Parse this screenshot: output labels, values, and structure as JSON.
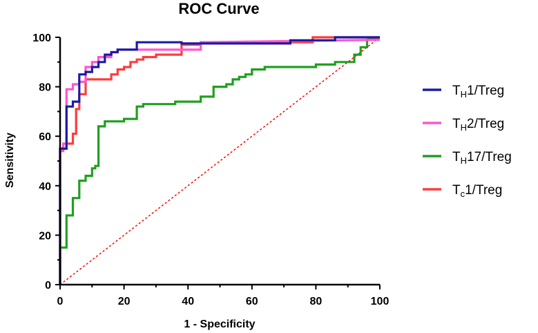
{
  "chart_data": {
    "type": "line",
    "title": "ROC Curve",
    "xlabel": "1 - Specificity",
    "ylabel": "Sensitivity",
    "xlim": [
      0,
      100
    ],
    "ylim": [
      0,
      100
    ],
    "xticks": [
      0,
      20,
      40,
      60,
      80,
      100
    ],
    "yticks": [
      0,
      20,
      40,
      60,
      80,
      100
    ],
    "grid": false,
    "legend_position": "right",
    "reference_line": {
      "x": [
        0,
        100
      ],
      "y": [
        0,
        100
      ],
      "color": "#ff0000",
      "style": "dotted"
    },
    "series": [
      {
        "name": "TH1/Treg",
        "label_main": "T",
        "label_sub": "H",
        "label_rest": "1/Treg",
        "color": "#1a1aa8",
        "x": [
          0,
          0,
          2,
          2,
          4,
          4,
          6,
          6,
          8,
          8,
          10,
          10,
          12,
          12,
          14,
          14,
          16,
          16,
          18,
          18,
          24,
          24,
          38,
          38,
          72,
          72,
          86,
          86,
          100
        ],
        "y": [
          0,
          55,
          55,
          72,
          72,
          74,
          74,
          85,
          85,
          86,
          86,
          88,
          88,
          90,
          90,
          93,
          93,
          94,
          94,
          95,
          95,
          98,
          98,
          97.5,
          97.5,
          98.8,
          98.8,
          100,
          100
        ]
      },
      {
        "name": "TH2/Treg",
        "label_main": "T",
        "label_sub": "H",
        "label_rest": "2/Treg",
        "color": "#ff55cc",
        "x": [
          0,
          0,
          1,
          1,
          2,
          2,
          4,
          4,
          6,
          6,
          8,
          8,
          10,
          10,
          12,
          12,
          16,
          16,
          18,
          18,
          44,
          44,
          100
        ],
        "y": [
          0,
          54,
          54,
          57,
          57,
          79,
          79,
          81,
          81,
          82,
          82,
          88,
          88,
          90,
          90,
          92,
          92,
          94,
          94,
          95,
          95,
          98,
          99
        ]
      },
      {
        "name": "TH17/Treg",
        "label_main": "T",
        "label_sub": "H",
        "label_rest": "17/Treg",
        "color": "#1fa01f",
        "x": [
          0,
          0,
          2,
          2,
          4,
          4,
          6,
          6,
          8,
          8,
          10,
          10,
          11,
          11,
          12,
          12,
          14,
          14,
          20,
          20,
          24,
          24,
          26,
          26,
          36,
          36,
          44,
          44,
          48,
          48,
          52,
          52,
          54,
          54,
          56,
          56,
          58,
          58,
          60,
          60,
          64,
          64,
          80,
          80,
          86,
          86,
          92,
          92,
          94,
          94,
          96,
          96,
          100
        ],
        "y": [
          0,
          15,
          15,
          28,
          28,
          35,
          35,
          42,
          42,
          44,
          44,
          47,
          47,
          48,
          48,
          64,
          64,
          66,
          66,
          67,
          67,
          72,
          72,
          73,
          73,
          74,
          74,
          76,
          76,
          80,
          80,
          81,
          81,
          83,
          83,
          84,
          84,
          85,
          85,
          87,
          87,
          88,
          88,
          89,
          89,
          90,
          90,
          93,
          93,
          96,
          96,
          99,
          100
        ]
      },
      {
        "name": "Tc1/Treg",
        "label_main": "T",
        "label_sub": "c",
        "label_rest": "1/Treg",
        "color": "#ff3b3b",
        "x": [
          0,
          0,
          2,
          2,
          4,
          4,
          5,
          5,
          6,
          6,
          8,
          8,
          16,
          16,
          18,
          18,
          20,
          20,
          22,
          22,
          24,
          24,
          26,
          26,
          30,
          30,
          38,
          38,
          44,
          44,
          79,
          79,
          100
        ],
        "y": [
          0,
          55,
          55,
          57,
          57,
          61,
          61,
          71,
          71,
          77,
          77,
          83,
          83,
          85,
          85,
          87,
          87,
          88,
          88,
          90,
          90,
          91,
          91,
          92,
          92,
          93,
          93,
          97,
          97,
          98,
          98,
          100,
          100
        ]
      }
    ]
  }
}
